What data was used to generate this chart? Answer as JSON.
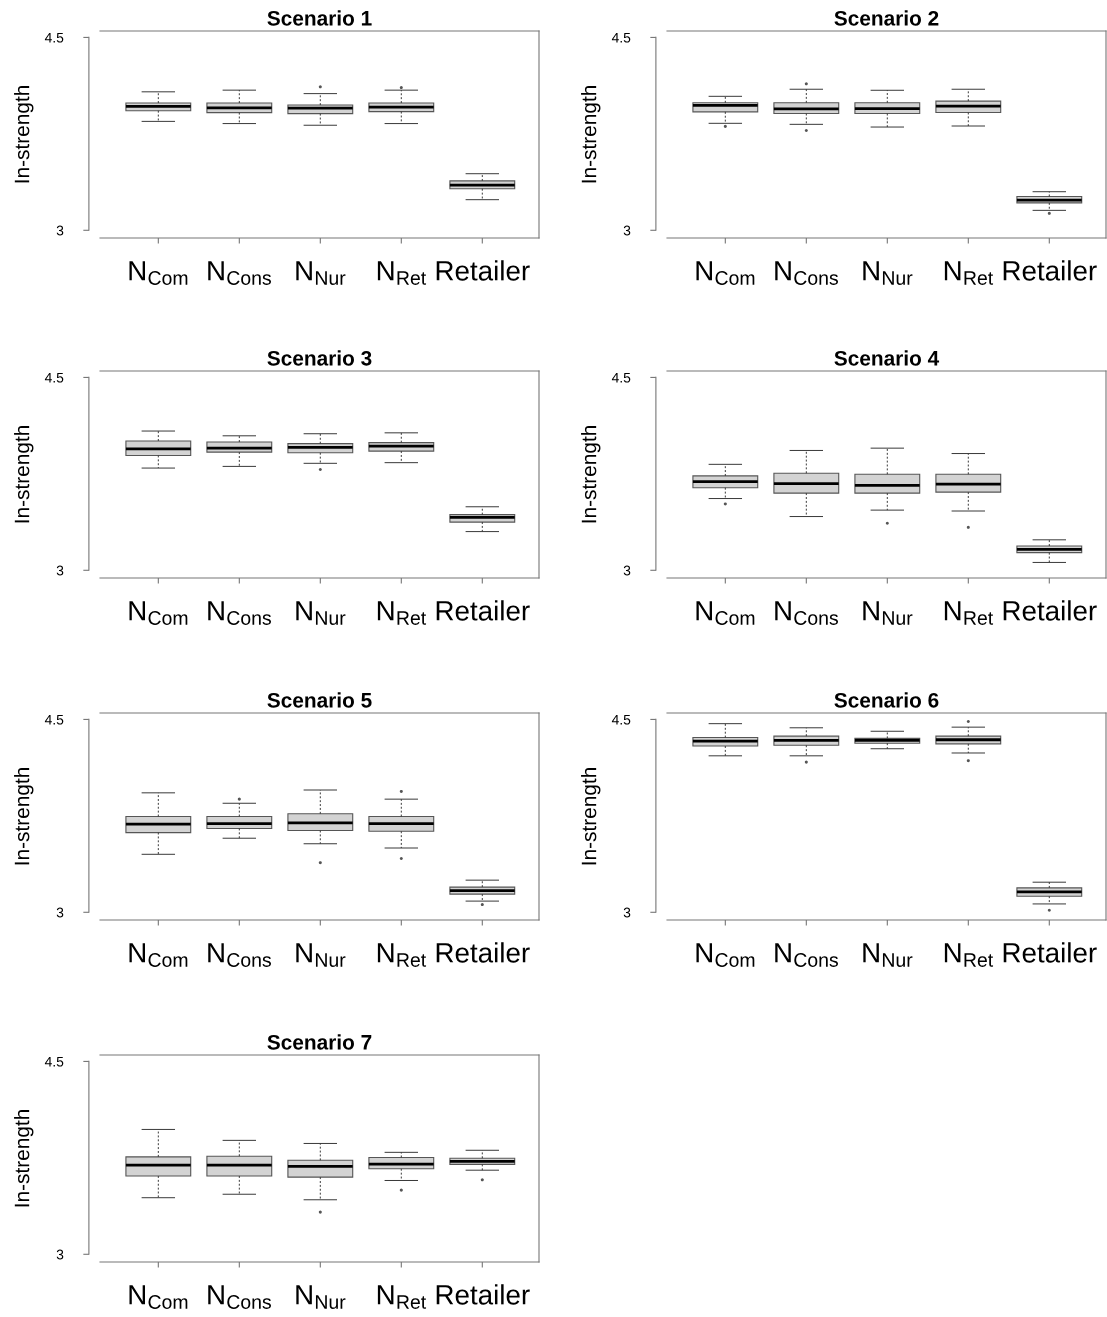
{
  "chart_data": [
    {
      "type": "box",
      "title": "Scenario 1",
      "ylabel": "In-strength",
      "categories": [
        "N$_{Com}$",
        "N$_{Cons}$",
        "N$_{Nur}$",
        "N$_{Ret}$",
        "Retailer"
      ],
      "ylim": [
        2.94,
        4.55
      ],
      "yticks": [
        3,
        4.5
      ],
      "boxes": [
        {
          "low": 3.847,
          "q1": 3.93,
          "median": 3.963,
          "q3": 3.99,
          "high": 4.077
        },
        {
          "low": 3.83,
          "q1": 3.915,
          "median": 3.952,
          "q3": 3.99,
          "high": 4.09
        },
        {
          "low": 3.817,
          "q1": 3.907,
          "median": 3.95,
          "q3": 3.974,
          "high": 4.063,
          "outliers": [
            4.116
          ]
        },
        {
          "low": 3.83,
          "q1": 3.923,
          "median": 3.958,
          "q3": 3.99,
          "high": 4.09,
          "outliers": [
            4.11
          ]
        },
        {
          "low": 3.238,
          "q1": 3.323,
          "median": 3.352,
          "q3": 3.384,
          "high": 3.44
        }
      ]
    },
    {
      "type": "box",
      "title": "Scenario 2",
      "ylabel": "In-strength",
      "categories": [
        "N$_{Com}$",
        "N$_{Cons}$",
        "N$_{Nur}$",
        "N$_{Ret}$",
        "Retailer"
      ],
      "ylim": [
        2.94,
        4.55
      ],
      "yticks": [
        3,
        4.5
      ],
      "boxes": [
        {
          "low": 3.832,
          "q1": 3.921,
          "median": 3.971,
          "q3": 3.992,
          "high": 4.042,
          "outliers": [
            3.808
          ]
        },
        {
          "low": 3.824,
          "q1": 3.908,
          "median": 3.945,
          "q3": 3.992,
          "high": 4.097,
          "outliers": [
            4.139,
            3.776
          ]
        },
        {
          "low": 3.803,
          "q1": 3.908,
          "median": 3.947,
          "q3": 3.992,
          "high": 4.089
        },
        {
          "low": 3.811,
          "q1": 3.916,
          "median": 3.966,
          "q3": 4.005,
          "high": 4.097
        },
        {
          "low": 3.155,
          "q1": 3.213,
          "median": 3.234,
          "q3": 3.263,
          "high": 3.3,
          "outliers": [
            3.132
          ]
        }
      ]
    },
    {
      "type": "box",
      "title": "Scenario 3",
      "ylabel": "In-strength",
      "categories": [
        "N$_{Com}$",
        "N$_{Cons}$",
        "N$_{Nur}$",
        "N$_{Ret}$",
        "Retailer"
      ],
      "ylim": [
        2.94,
        4.55
      ],
      "yticks": [
        3,
        4.5
      ],
      "boxes": [
        {
          "low": 3.795,
          "q1": 3.893,
          "median": 3.945,
          "q3": 4.006,
          "high": 4.083
        },
        {
          "low": 3.808,
          "q1": 3.919,
          "median": 3.951,
          "q3": 3.998,
          "high": 4.046
        },
        {
          "low": 3.832,
          "q1": 3.914,
          "median": 3.956,
          "q3": 3.985,
          "high": 4.062,
          "outliers": [
            3.784
          ]
        },
        {
          "low": 3.837,
          "q1": 3.927,
          "median": 3.966,
          "q3": 3.993,
          "high": 4.069
        },
        {
          "low": 3.301,
          "q1": 3.375,
          "median": 3.412,
          "q3": 3.433,
          "high": 3.494
        }
      ]
    },
    {
      "type": "box",
      "title": "Scenario 4",
      "ylabel": "In-strength",
      "categories": [
        "N$_{Com}$",
        "N$_{Cons}$",
        "N$_{Nur}$",
        "N$_{Ret}$",
        "Retailer"
      ],
      "ylim": [
        2.94,
        4.55
      ],
      "yticks": [
        3,
        4.5
      ],
      "boxes": [
        {
          "low": 3.558,
          "q1": 3.642,
          "median": 3.689,
          "q3": 3.734,
          "high": 3.824,
          "outliers": [
            3.516
          ]
        },
        {
          "low": 3.418,
          "q1": 3.6,
          "median": 3.674,
          "q3": 3.755,
          "high": 3.932
        },
        {
          "low": 3.468,
          "q1": 3.6,
          "median": 3.661,
          "q3": 3.747,
          "high": 3.95,
          "outliers": [
            3.366
          ]
        },
        {
          "low": 3.461,
          "q1": 3.608,
          "median": 3.671,
          "q3": 3.747,
          "high": 3.908,
          "outliers": [
            3.334
          ]
        },
        {
          "low": 3.061,
          "q1": 3.137,
          "median": 3.163,
          "q3": 3.189,
          "high": 3.237
        }
      ]
    },
    {
      "type": "box",
      "title": "Scenario 5",
      "ylabel": "In-strength",
      "categories": [
        "N$_{Com}$",
        "N$_{Cons}$",
        "N$_{Nur}$",
        "N$_{Ret}$",
        "Retailer"
      ],
      "ylim": [
        2.94,
        4.55
      ],
      "yticks": [
        3,
        4.5
      ],
      "boxes": [
        {
          "low": 3.451,
          "q1": 3.62,
          "median": 3.685,
          "q3": 3.745,
          "high": 3.929
        },
        {
          "low": 3.576,
          "q1": 3.652,
          "median": 3.69,
          "q3": 3.745,
          "high": 3.848,
          "outliers": [
            3.88
          ]
        },
        {
          "low": 3.533,
          "q1": 3.636,
          "median": 3.696,
          "q3": 3.766,
          "high": 3.951,
          "outliers": [
            3.386
          ]
        },
        {
          "low": 3.5,
          "q1": 3.63,
          "median": 3.69,
          "q3": 3.745,
          "high": 3.88,
          "outliers": [
            3.94,
            3.418
          ]
        },
        {
          "low": 3.087,
          "q1": 3.141,
          "median": 3.168,
          "q3": 3.196,
          "high": 3.25,
          "outliers": [
            3.06
          ]
        }
      ]
    },
    {
      "type": "box",
      "title": "Scenario 6",
      "ylabel": "In-strength",
      "categories": [
        "N$_{Com}$",
        "N$_{Cons}$",
        "N$_{Nur}$",
        "N$_{Ret}$",
        "Retailer"
      ],
      "ylim": [
        2.94,
        4.55
      ],
      "yticks": [
        3,
        4.5
      ],
      "boxes": [
        {
          "low": 4.217,
          "q1": 4.293,
          "median": 4.332,
          "q3": 4.359,
          "high": 4.467
        },
        {
          "low": 4.217,
          "q1": 4.299,
          "median": 4.337,
          "q3": 4.37,
          "high": 4.435,
          "outliers": [
            4.168
          ]
        },
        {
          "low": 4.272,
          "q1": 4.315,
          "median": 4.337,
          "q3": 4.353,
          "high": 4.408
        },
        {
          "low": 4.239,
          "q1": 4.31,
          "median": 4.342,
          "q3": 4.37,
          "high": 4.44,
          "outliers": [
            4.484,
            4.179
          ]
        },
        {
          "low": 3.065,
          "q1": 3.125,
          "median": 3.158,
          "q3": 3.19,
          "high": 3.234,
          "outliers": [
            3.016
          ]
        }
      ]
    },
    {
      "type": "box",
      "title": "Scenario 7",
      "ylabel": "In-strength",
      "categories": [
        "N$_{Com}$",
        "N$_{Cons}$",
        "N$_{Nur}$",
        "N$_{Ret}$",
        "Retailer"
      ],
      "ylim": [
        2.94,
        4.55
      ],
      "yticks": [
        3,
        4.5
      ],
      "boxes": [
        {
          "low": 3.44,
          "q1": 3.609,
          "median": 3.694,
          "q3": 3.758,
          "high": 3.971
        },
        {
          "low": 3.467,
          "q1": 3.609,
          "median": 3.694,
          "q3": 3.763,
          "high": 3.886
        },
        {
          "low": 3.424,
          "q1": 3.6,
          "median": 3.683,
          "q3": 3.731,
          "high": 3.862,
          "outliers": [
            3.328
          ]
        },
        {
          "low": 3.574,
          "q1": 3.665,
          "median": 3.702,
          "q3": 3.753,
          "high": 3.793,
          "outliers": [
            3.499
          ]
        },
        {
          "low": 3.654,
          "q1": 3.699,
          "median": 3.723,
          "q3": 3.747,
          "high": 3.809,
          "outliers": [
            3.579
          ]
        }
      ]
    }
  ]
}
